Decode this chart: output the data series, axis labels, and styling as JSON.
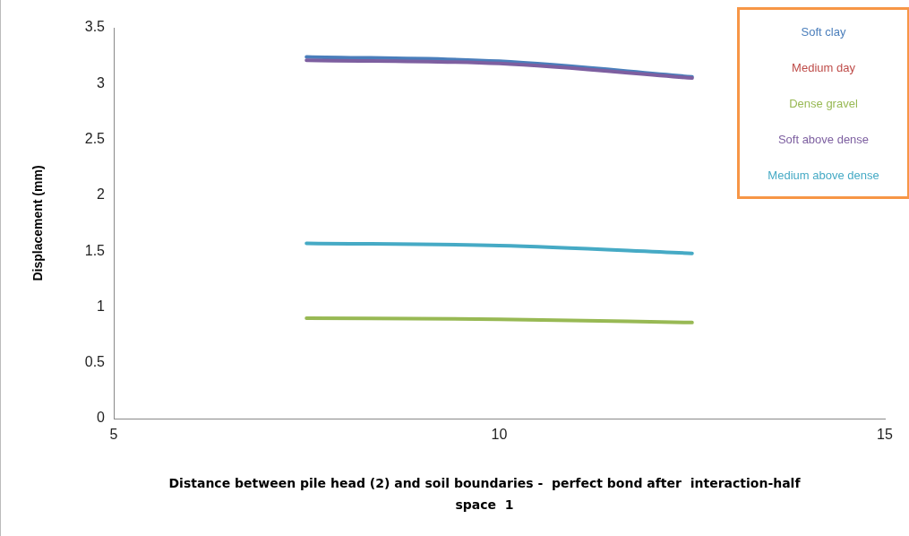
{
  "chart_data": {
    "type": "line",
    "xlabel": "Distance between pile head (2) and soil boundaries -  perfect bond after  interaction-half space  1",
    "ylabel": "Displacement (mm)",
    "x": [
      7.5,
      10,
      12.5
    ],
    "series": [
      {
        "name": "Soft clay",
        "color": "#4a7ebb",
        "values": [
          3.24,
          3.2,
          3.06
        ]
      },
      {
        "name": "Medium day",
        "color": "#be4b48",
        "values": [
          null,
          null,
          null
        ]
      },
      {
        "name": "Dense gravel",
        "color": "#98b954",
        "values": [
          0.9,
          0.89,
          0.86
        ]
      },
      {
        "name": "Soft above dense",
        "color": "#7d5fa0",
        "values": [
          3.21,
          3.18,
          3.05
        ]
      },
      {
        "name": "Medium above dense",
        "color": "#46aac5",
        "values": [
          1.57,
          1.55,
          1.48
        ]
      }
    ],
    "xlim": [
      5,
      15
    ],
    "xticks": [
      5,
      10,
      15
    ],
    "ylim": [
      0,
      3.5
    ],
    "yticks": [
      0,
      0.5,
      1,
      1.5,
      2,
      2.5,
      3,
      3.5
    ],
    "grid": false,
    "legend": "top right",
    "marker": "none",
    "line_style": "solid"
  }
}
